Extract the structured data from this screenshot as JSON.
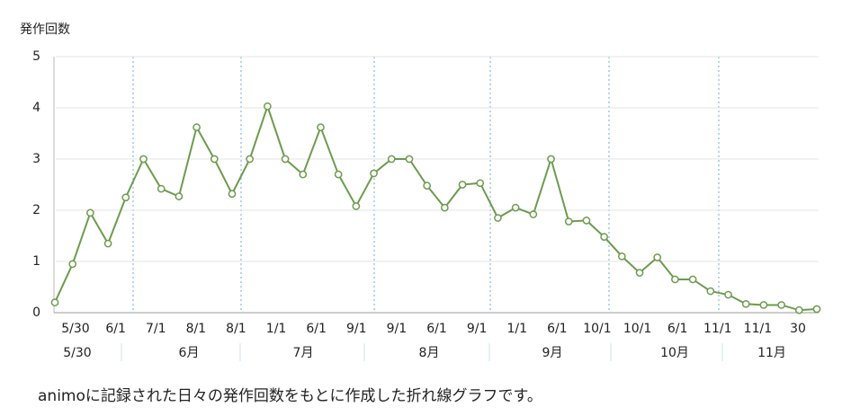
{
  "chart_data": {
    "type": "line",
    "ylabel": "発作回数",
    "ylim": [
      0,
      5
    ],
    "yticks": [
      0,
      1,
      2,
      3,
      4,
      5
    ],
    "grid": true,
    "series": [
      {
        "name": "発作回数",
        "color": "#6d9b4e",
        "values": [
          0.2,
          0.95,
          1.95,
          1.35,
          2.25,
          3.0,
          2.42,
          2.27,
          3.62,
          3.0,
          2.32,
          3.0,
          4.03,
          3.0,
          2.7,
          3.62,
          2.7,
          2.08,
          2.72,
          3.0,
          3.0,
          2.48,
          2.05,
          2.5,
          2.53,
          1.85,
          2.05,
          1.92,
          3.0,
          1.78,
          1.8,
          1.48,
          1.1,
          0.78,
          1.08,
          0.65,
          0.65,
          0.42,
          0.35,
          0.17,
          0.15,
          0.15,
          0.05,
          0.07
        ]
      }
    ],
    "x_tick_labels": [
      "5/30",
      "6/1",
      "7/1",
      "8/1",
      "8/1",
      "1/1",
      "6/1",
      "9/1",
      "9/1",
      "6/1",
      "9/1",
      "1/1",
      "6/1",
      "10/1",
      "10/1",
      "6/1",
      "11/1",
      "11/1",
      "30"
    ],
    "months": [
      "5/30",
      "6月",
      "7月",
      "8月",
      "9月",
      "10月",
      "11月"
    ],
    "caption": "animoに記録された日々の発作回数をもとに作成した折れ線グラフです。"
  }
}
